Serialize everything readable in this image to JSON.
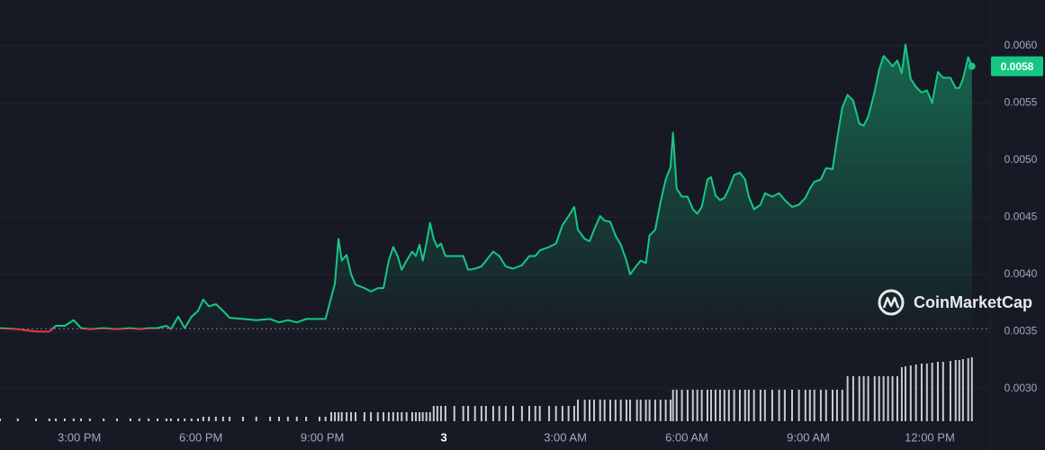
{
  "chart_data": {
    "type": "line",
    "x": [
      13.04,
      13.48,
      13.93,
      14.26,
      14.42,
      14.64,
      14.86,
      15.04,
      15.26,
      15.6,
      15.93,
      16.26,
      16.48,
      16.71,
      16.93,
      17.15,
      17.26,
      17.44,
      17.6,
      17.77,
      17.93,
      18.06,
      18.2,
      18.37,
      18.55,
      18.71,
      19.04,
      19.37,
      19.71,
      19.93,
      20.15,
      20.37,
      20.6,
      20.93,
      21.08,
      21.22,
      21.31,
      21.4,
      21.48,
      21.6,
      21.71,
      21.82,
      22.04,
      22.2,
      22.37,
      22.51,
      22.64,
      22.75,
      22.86,
      22.96,
      23.08,
      23.22,
      23.31,
      23.4,
      23.48,
      23.57,
      23.66,
      23.75,
      23.84,
      23.93,
      24.04,
      24.26,
      24.48,
      24.6,
      24.77,
      24.93,
      25.04,
      25.22,
      25.37,
      25.53,
      25.71,
      25.93,
      26.11,
      26.26,
      26.37,
      26.6,
      26.77,
      26.93,
      27.08,
      27.22,
      27.31,
      27.48,
      27.6,
      27.71,
      27.86,
      27.97,
      28.11,
      28.24,
      28.37,
      28.51,
      28.6,
      28.77,
      28.86,
      28.99,
      29.08,
      29.22,
      29.35,
      29.48,
      29.6,
      29.66,
      29.75,
      29.88,
      30.02,
      30.15,
      30.26,
      30.37,
      30.51,
      30.6,
      30.71,
      30.82,
      30.93,
      31.04,
      31.17,
      31.31,
      31.44,
      31.53,
      31.66,
      31.82,
      31.93,
      32.11,
      32.28,
      32.42,
      32.6,
      32.77,
      32.93,
      33.04,
      33.15,
      33.31,
      33.44,
      33.6,
      33.71,
      33.84,
      33.97,
      34.11,
      34.26,
      34.37,
      34.48,
      34.64,
      34.75,
      34.86,
      34.97,
      35.08,
      35.2,
      35.31,
      35.4,
      35.53,
      35.66,
      35.8,
      35.93,
      36.06,
      36.2,
      36.33,
      36.51,
      36.64,
      36.73,
      36.82,
      36.95,
      37.04
    ],
    "values": [
      0.00353,
      0.00352,
      0.0035,
      0.0035,
      0.00355,
      0.00355,
      0.0036,
      0.00353,
      0.00352,
      0.00353,
      0.00352,
      0.00353,
      0.00352,
      0.00353,
      0.00353,
      0.00355,
      0.00352,
      0.00363,
      0.00353,
      0.00363,
      0.00368,
      0.00378,
      0.00372,
      0.00374,
      0.00368,
      0.00362,
      0.00361,
      0.0036,
      0.00361,
      0.00358,
      0.0036,
      0.00358,
      0.00361,
      0.00361,
      0.00361,
      0.0038,
      0.00392,
      0.00431,
      0.00412,
      0.00417,
      0.004,
      0.00391,
      0.00388,
      0.00385,
      0.00388,
      0.00388,
      0.00412,
      0.00424,
      0.00416,
      0.00404,
      0.00412,
      0.0042,
      0.00416,
      0.00426,
      0.00412,
      0.00427,
      0.00445,
      0.00431,
      0.00424,
      0.00427,
      0.00416,
      0.00416,
      0.00416,
      0.00404,
      0.00405,
      0.00407,
      0.00412,
      0.0042,
      0.00416,
      0.00407,
      0.00405,
      0.00408,
      0.00416,
      0.00416,
      0.00421,
      0.00424,
      0.00427,
      0.00443,
      0.00451,
      0.00459,
      0.00439,
      0.00431,
      0.00429,
      0.00439,
      0.00451,
      0.00447,
      0.00446,
      0.00434,
      0.00426,
      0.00412,
      0.004,
      0.00408,
      0.00412,
      0.0041,
      0.00434,
      0.00439,
      0.00463,
      0.00483,
      0.00494,
      0.00524,
      0.00475,
      0.00468,
      0.00468,
      0.00457,
      0.00453,
      0.00459,
      0.00483,
      0.00485,
      0.00469,
      0.00465,
      0.00467,
      0.00475,
      0.00487,
      0.00489,
      0.00483,
      0.00468,
      0.00457,
      0.00461,
      0.00471,
      0.00468,
      0.00471,
      0.00465,
      0.00459,
      0.00461,
      0.00467,
      0.00475,
      0.00481,
      0.00483,
      0.00493,
      0.00492,
      0.00518,
      0.00546,
      0.00557,
      0.00552,
      0.00532,
      0.0053,
      0.00538,
      0.0056,
      0.00579,
      0.00591,
      0.00587,
      0.00582,
      0.00587,
      0.00576,
      0.00601,
      0.00571,
      0.00564,
      0.00559,
      0.00561,
      0.0055,
      0.00577,
      0.00572,
      0.00572,
      0.00563,
      0.00563,
      0.00571,
      0.0059,
      0.00582
    ],
    "volume": [
      3,
      3,
      3,
      3,
      3,
      3,
      3,
      3,
      3,
      3,
      3,
      3,
      3,
      3,
      3,
      3,
      3,
      3,
      3,
      3,
      3,
      5,
      5,
      5,
      5,
      5,
      5,
      5,
      5,
      5,
      5,
      5,
      5,
      5,
      5,
      10,
      10,
      10,
      10,
      10,
      10,
      10,
      10,
      10,
      10,
      10,
      10,
      10,
      10,
      10,
      10,
      10,
      10,
      10,
      10,
      10,
      10,
      17,
      17,
      17,
      17,
      17,
      17,
      17,
      17,
      17,
      17,
      17,
      17,
      17,
      17,
      17,
      17,
      17,
      17,
      17,
      17,
      17,
      17,
      17,
      24,
      24,
      24,
      24,
      24,
      24,
      24,
      24,
      24,
      24,
      24,
      24,
      24,
      24,
      24,
      24,
      24,
      24,
      24,
      35,
      35,
      35,
      35,
      35,
      35,
      35,
      35,
      35,
      35,
      35,
      35,
      35,
      35,
      35,
      35,
      35,
      35,
      35,
      35,
      35,
      35,
      35,
      35,
      35,
      35,
      35,
      35,
      35,
      35,
      35,
      35,
      35,
      50,
      50,
      50,
      50,
      50,
      50,
      50,
      50,
      50,
      50,
      50,
      60,
      61,
      62,
      63,
      64,
      64,
      65,
      66,
      66,
      67,
      68,
      68,
      69,
      70,
      71
    ],
    "volume_lim": [
      0,
      80
    ],
    "xlim": [
      13.04,
      37.49
    ],
    "xticks": [
      {
        "value": 15,
        "label": "3:00 PM"
      },
      {
        "value": 18,
        "label": "6:00 PM"
      },
      {
        "value": 21,
        "label": "9:00 PM"
      },
      {
        "value": 24,
        "label": "3"
      },
      {
        "value": 27,
        "label": "3:00 AM"
      },
      {
        "value": 30,
        "label": "6:00 AM"
      },
      {
        "value": 33,
        "label": "9:00 AM"
      },
      {
        "value": 36,
        "label": "12:00 PM"
      }
    ],
    "ylim": [
      0.0027,
      0.0064
    ],
    "yticks": [
      {
        "value": 0.003,
        "label": "0.0030"
      },
      0.0035,
      {
        "value": 0.004,
        "label": "0.0040"
      },
      0.0045,
      {
        "value": 0.005,
        "label": "0.0050"
      },
      0.0055,
      {
        "value": 0.006,
        "label": "0.0060"
      }
    ],
    "baseline": 0.003525,
    "last_price": {
      "value": 0.00582,
      "label": "0.0058"
    },
    "up_color": "#16c784",
    "down_color": "#ea3943",
    "grid": true,
    "watermark": "CoinMarketCap"
  }
}
